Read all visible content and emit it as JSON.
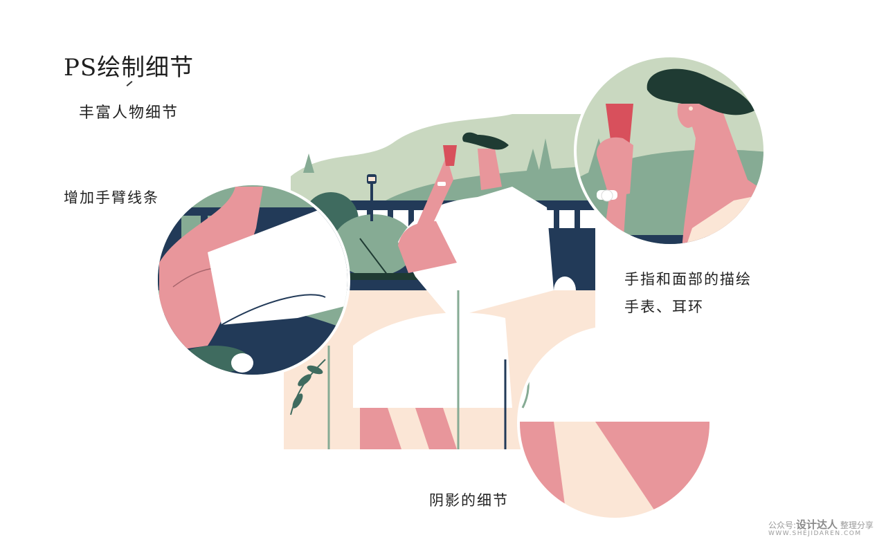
{
  "heading": {
    "title": "PS绘制细节",
    "subtitle": "丰富人物细节"
  },
  "notes": {
    "arm_lines": "增加手臂线条",
    "face_details_line1": "手指和面部的描绘",
    "face_details_line2": "手表、耳环",
    "shadow_details": "阴影的细节"
  },
  "watermark": {
    "prefix": "公众号:",
    "brand": "设计达人",
    "suffix": "整理分享",
    "url": "WWW.SHEJIDAREN.COM"
  },
  "palette": {
    "sage_light": "#c9d8c0",
    "sage": "#86ab94",
    "navy": "#223a58",
    "pink": "#e8969b",
    "cream": "#fbe6d6",
    "hair": "#1f3b33",
    "wine": "#d8505c"
  }
}
